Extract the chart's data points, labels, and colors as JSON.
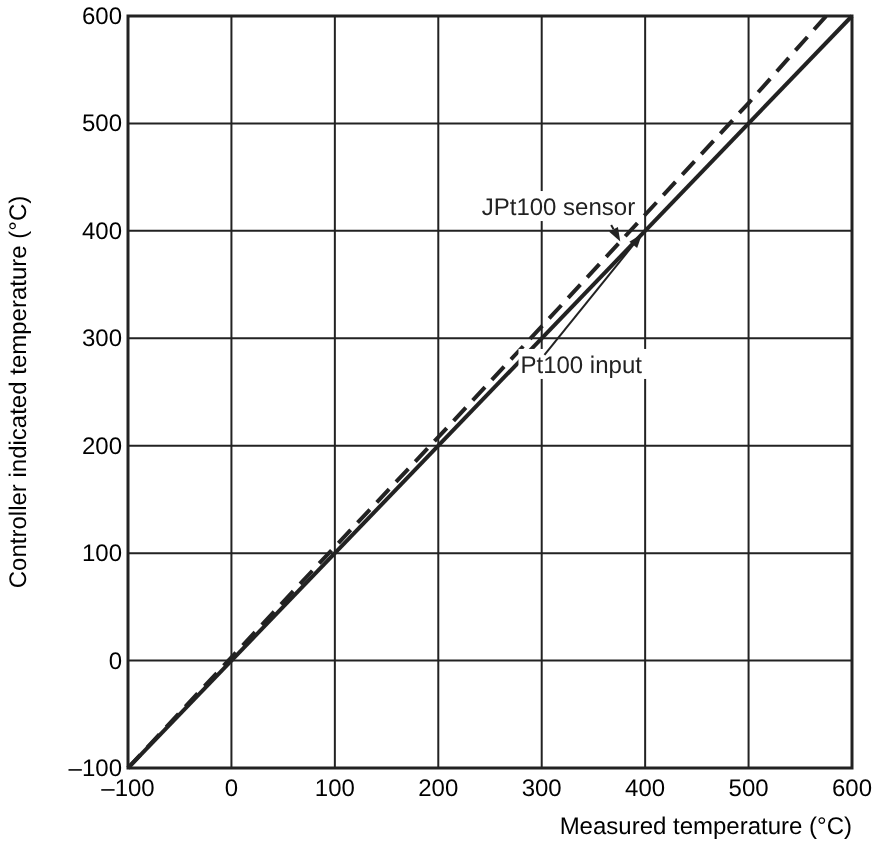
{
  "chart_data": {
    "type": "line",
    "xlabel": "Measured temperature (°C)",
    "ylabel": "Controller indicated temperature (°C)",
    "xlim": [
      -100,
      600
    ],
    "ylim": [
      -100,
      600
    ],
    "xticks": [
      {
        "value": -100,
        "label": "–100"
      },
      0,
      100,
      200,
      300,
      400,
      500,
      600
    ],
    "yticks": [
      {
        "value": -100,
        "label": "–100"
      },
      0,
      100,
      200,
      300,
      400,
      500,
      600
    ],
    "grid": true,
    "marker": "none",
    "series": [
      {
        "name": "JPt100 sensor",
        "color": "#222222",
        "line_style": "dashed",
        "x": [
          -100,
          0,
          100,
          200,
          300,
          400,
          500,
          575
        ],
        "values": [
          -100,
          3,
          106,
          208,
          311,
          415,
          519,
          600
        ]
      },
      {
        "name": "Pt100 input",
        "color": "#222222",
        "line_style": "solid",
        "x": [
          -100,
          600
        ],
        "values": [
          -100,
          600
        ]
      }
    ]
  }
}
